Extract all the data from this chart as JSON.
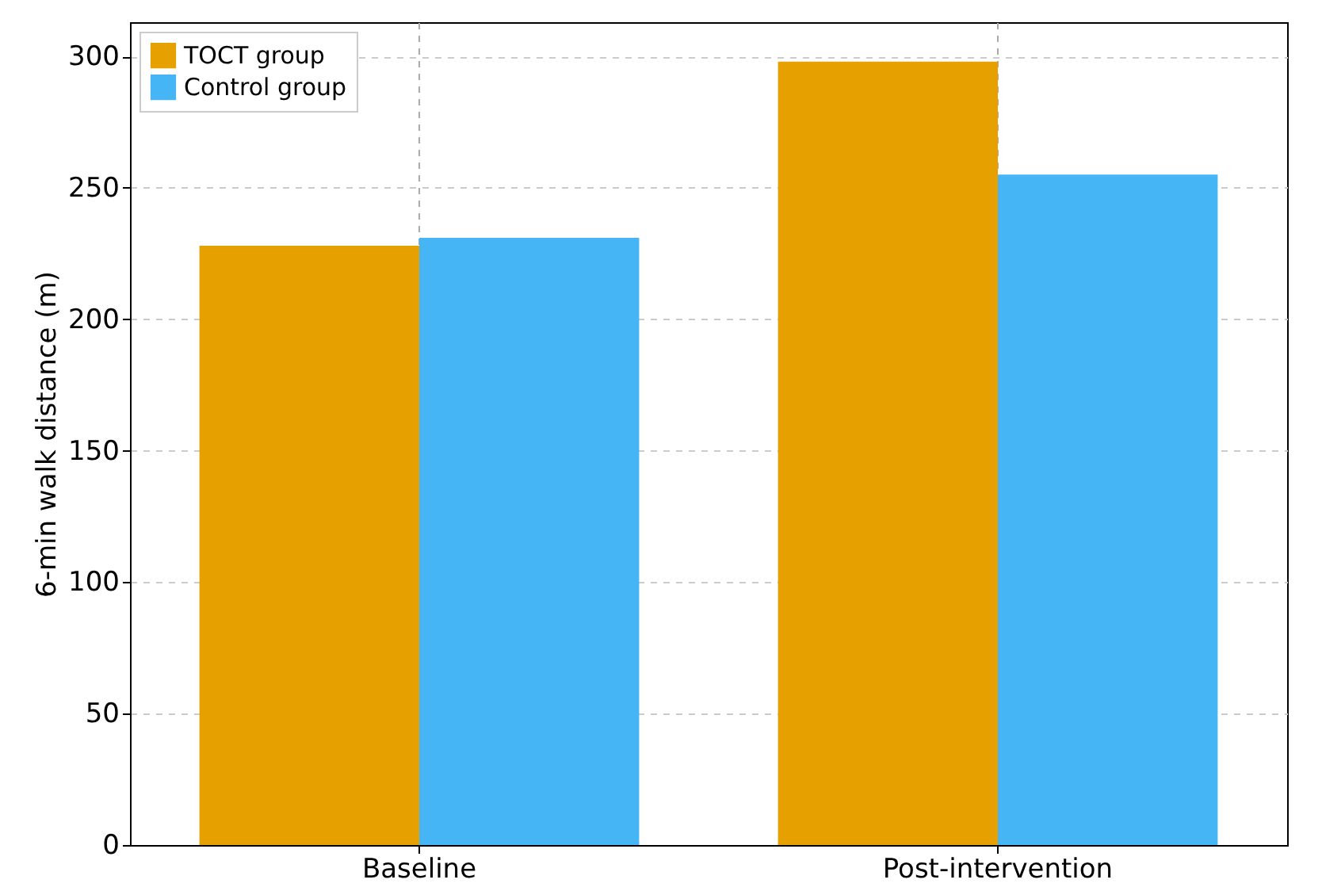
{
  "chart_data": {
    "type": "bar",
    "ylabel": "6-min walk distance (m)",
    "categories": [
      "Baseline",
      "Post-intervention"
    ],
    "series": [
      {
        "name": "TOCT group",
        "color": "#e6a000",
        "values": [
          228,
          298
        ]
      },
      {
        "name": "Control group",
        "color": "#45b5f5",
        "values": [
          231,
          255
        ]
      }
    ],
    "ylim": [
      0,
      313
    ],
    "yticks": [
      0,
      50,
      100,
      150,
      200,
      250,
      300
    ],
    "grid": true,
    "legend": "top left"
  }
}
